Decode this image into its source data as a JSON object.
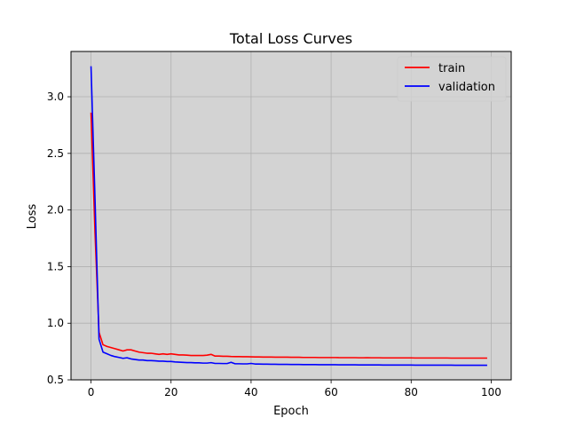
{
  "chart_data": {
    "type": "line",
    "title": "Total Loss Curves",
    "xlabel": "Epoch",
    "ylabel": "Loss",
    "xlim": [
      -5,
      105
    ],
    "ylim": [
      0.5,
      3.4
    ],
    "xticks": [
      0,
      20,
      40,
      60,
      80,
      100
    ],
    "yticks": [
      0.5,
      1.0,
      1.5,
      2.0,
      2.5,
      3.0
    ],
    "xtick_labels": [
      "0",
      "20",
      "40",
      "60",
      "80",
      "100"
    ],
    "ytick_labels": [
      "0.5",
      "1.0",
      "1.5",
      "2.0",
      "2.5",
      "3.0"
    ],
    "grid": true,
    "background": "#d3d3d3",
    "grid_color": "#b0b0b0",
    "legend_position": "top-right",
    "series": [
      {
        "name": "train",
        "color": "#ff0000",
        "x": [
          0,
          1,
          2,
          3,
          4,
          5,
          6,
          7,
          8,
          9,
          10,
          11,
          12,
          13,
          14,
          15,
          16,
          17,
          18,
          19,
          20,
          21,
          22,
          23,
          24,
          25,
          26,
          27,
          28,
          29,
          30,
          31,
          32,
          33,
          34,
          35,
          36,
          37,
          38,
          39,
          40,
          41,
          42,
          43,
          44,
          45,
          46,
          47,
          48,
          49,
          50,
          51,
          52,
          53,
          54,
          55,
          56,
          57,
          58,
          59,
          60,
          61,
          62,
          63,
          64,
          65,
          66,
          67,
          68,
          69,
          70,
          71,
          72,
          73,
          74,
          75,
          76,
          77,
          78,
          79,
          80,
          81,
          82,
          83,
          84,
          85,
          86,
          87,
          88,
          89,
          90,
          91,
          92,
          93,
          94,
          95,
          96,
          97,
          98,
          99
        ],
        "values": [
          2.86,
          1.8,
          0.92,
          0.81,
          0.795,
          0.785,
          0.775,
          0.765,
          0.755,
          0.765,
          0.765,
          0.755,
          0.745,
          0.74,
          0.735,
          0.735,
          0.73,
          0.725,
          0.73,
          0.725,
          0.73,
          0.725,
          0.72,
          0.72,
          0.718,
          0.715,
          0.715,
          0.715,
          0.715,
          0.718,
          0.725,
          0.71,
          0.71,
          0.708,
          0.708,
          0.706,
          0.705,
          0.705,
          0.704,
          0.704,
          0.703,
          0.702,
          0.702,
          0.701,
          0.701,
          0.701,
          0.7,
          0.7,
          0.7,
          0.7,
          0.699,
          0.699,
          0.699,
          0.698,
          0.698,
          0.698,
          0.698,
          0.697,
          0.697,
          0.697,
          0.697,
          0.697,
          0.696,
          0.696,
          0.696,
          0.696,
          0.696,
          0.695,
          0.695,
          0.696,
          0.695,
          0.695,
          0.695,
          0.694,
          0.694,
          0.694,
          0.694,
          0.694,
          0.694,
          0.694,
          0.694,
          0.693,
          0.693,
          0.693,
          0.693,
          0.693,
          0.693,
          0.693,
          0.693,
          0.693,
          0.692,
          0.692,
          0.692,
          0.692,
          0.692,
          0.692,
          0.692,
          0.692,
          0.692,
          0.692
        ]
      },
      {
        "name": "validation",
        "color": "#0000ff",
        "x": [
          0,
          1,
          2,
          3,
          4,
          5,
          6,
          7,
          8,
          9,
          10,
          11,
          12,
          13,
          14,
          15,
          16,
          17,
          18,
          19,
          20,
          21,
          22,
          23,
          24,
          25,
          26,
          27,
          28,
          29,
          30,
          31,
          32,
          33,
          34,
          35,
          36,
          37,
          38,
          39,
          40,
          41,
          42,
          43,
          44,
          45,
          46,
          47,
          48,
          49,
          50,
          51,
          52,
          53,
          54,
          55,
          56,
          57,
          58,
          59,
          60,
          61,
          62,
          63,
          64,
          65,
          66,
          67,
          68,
          69,
          70,
          71,
          72,
          73,
          74,
          75,
          76,
          77,
          78,
          79,
          80,
          81,
          82,
          83,
          84,
          85,
          86,
          87,
          88,
          89,
          90,
          91,
          92,
          93,
          94,
          95,
          96,
          97,
          98,
          99
        ],
        "values": [
          3.27,
          2.1,
          0.86,
          0.745,
          0.73,
          0.715,
          0.705,
          0.698,
          0.69,
          0.695,
          0.685,
          0.68,
          0.675,
          0.675,
          0.67,
          0.67,
          0.668,
          0.665,
          0.665,
          0.662,
          0.662,
          0.658,
          0.656,
          0.654,
          0.652,
          0.652,
          0.65,
          0.65,
          0.648,
          0.648,
          0.652,
          0.645,
          0.645,
          0.644,
          0.644,
          0.655,
          0.642,
          0.642,
          0.641,
          0.641,
          0.645,
          0.64,
          0.64,
          0.639,
          0.639,
          0.638,
          0.638,
          0.637,
          0.637,
          0.637,
          0.636,
          0.636,
          0.636,
          0.635,
          0.635,
          0.635,
          0.635,
          0.634,
          0.634,
          0.634,
          0.634,
          0.634,
          0.633,
          0.633,
          0.633,
          0.633,
          0.633,
          0.632,
          0.632,
          0.632,
          0.632,
          0.632,
          0.632,
          0.631,
          0.631,
          0.631,
          0.631,
          0.631,
          0.631,
          0.631,
          0.631,
          0.63,
          0.63,
          0.63,
          0.63,
          0.63,
          0.63,
          0.63,
          0.63,
          0.63,
          0.63,
          0.629,
          0.629,
          0.629,
          0.629,
          0.629,
          0.629,
          0.629,
          0.629,
          0.629
        ]
      }
    ]
  }
}
